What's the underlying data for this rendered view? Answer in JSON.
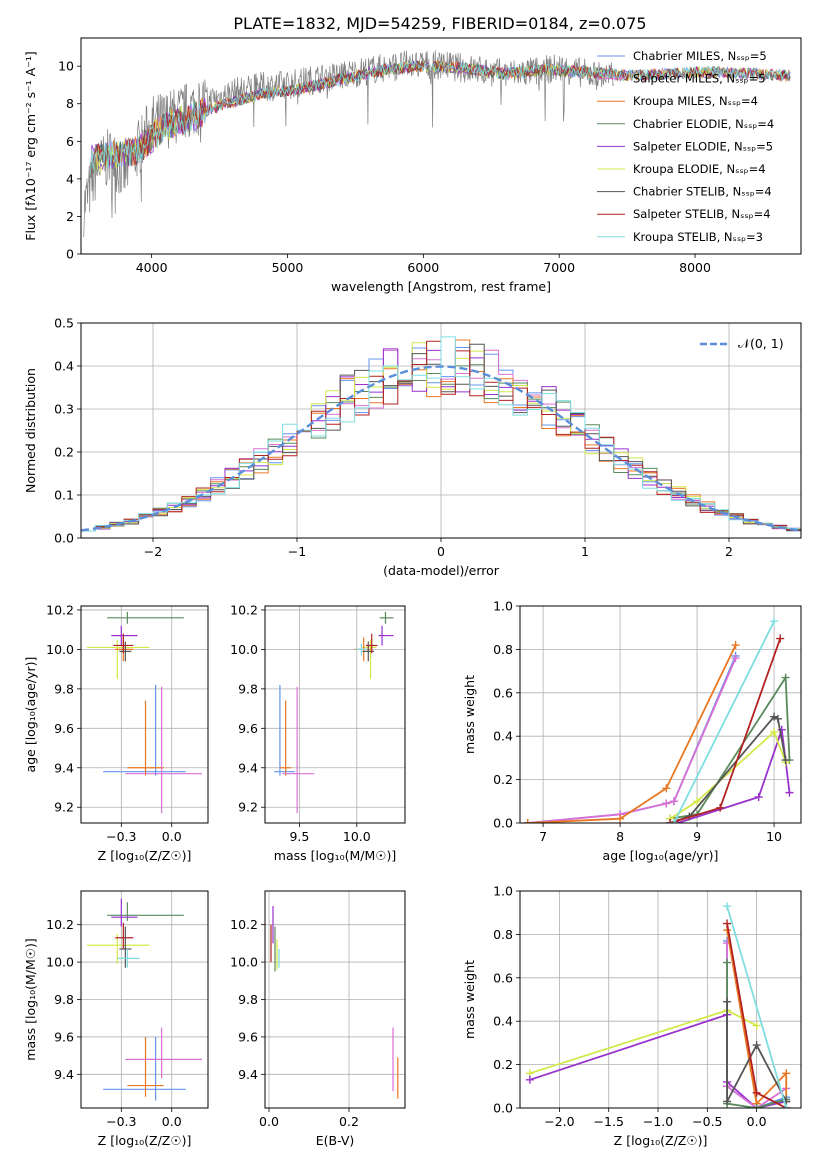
{
  "figure": {
    "title": "PLATE=1832, MJD=54259, FIBERID=0184, z=0.075"
  },
  "chart_data": [
    {
      "id": "spectrum",
      "type": "line",
      "xlabel": "wavelength [Angstrom, rest frame]",
      "ylabel": "Flux [fλ10⁻¹⁷ erg cm⁻² s⁻¹ A⁻¹]",
      "xlim": [
        3480,
        8780
      ],
      "ylim": [
        0,
        11.5
      ],
      "xticks": [
        4000,
        5000,
        6000,
        7000,
        8000
      ],
      "yticks": [
        0,
        2,
        4,
        6,
        8,
        10
      ],
      "grid": false,
      "legend_position": "right",
      "data_series": {
        "name": "",
        "color": "#808080",
        "x": [
          3500,
          3600,
          3700,
          3800,
          3900,
          4000,
          4200,
          4400,
          4600,
          4800,
          5000,
          5200,
          5400,
          5600,
          5800,
          6000,
          6200,
          6400,
          6600,
          6800,
          7000,
          7200,
          7400
        ],
        "y": [
          2.5,
          4.6,
          5.2,
          4.3,
          5.6,
          6.9,
          7.4,
          8.1,
          8.6,
          8.9,
          9.0,
          9.3,
          9.5,
          9.8,
          10.0,
          10.1,
          10.0,
          9.8,
          9.6,
          9.7,
          9.9,
          9.6,
          9.4
        ]
      },
      "model_x": [
        3550,
        3700,
        3900,
        4100,
        4300,
        4500,
        4800,
        5100,
        5400,
        5700,
        6000,
        6300,
        6600,
        6900,
        7200,
        7500,
        7800,
        8100,
        8400,
        8700
      ],
      "model_y": [
        5.0,
        5.3,
        5.5,
        6.8,
        7.3,
        7.9,
        8.5,
        8.8,
        9.3,
        9.8,
        10.0,
        9.9,
        9.6,
        9.8,
        9.7,
        9.5,
        9.6,
        9.7,
        9.6,
        9.5
      ],
      "legend": [
        {
          "name": "Chabrier MILES, N_SSP=5",
          "color": "#6495ed"
        },
        {
          "name": "Salpeter MILES, N_SSP=5",
          "color": "#da70d6"
        },
        {
          "name": "Kroupa MILES, N_SSP=4",
          "color": "#e87722"
        },
        {
          "name": "Chabrier ELODIE, N_SSP=4",
          "color": "#5a8a5a"
        },
        {
          "name": "Salpeter ELODIE, N_SSP=5",
          "color": "#9932cc"
        },
        {
          "name": "Kroupa ELODIE, N_SSP=4",
          "color": "#d4e84a"
        },
        {
          "name": "Chabrier STELIB, N_SSP=4",
          "color": "#555555"
        },
        {
          "name": "Salpeter STELIB, N_SSP=4",
          "color": "#b22222"
        },
        {
          "name": "Kroupa STELIB, N_SSP=3",
          "color": "#7fdde0"
        }
      ]
    },
    {
      "id": "residuals",
      "type": "step",
      "xlabel": "(data-model)/error",
      "ylabel": "Normed distribution",
      "xlim": [
        -2.5,
        2.5
      ],
      "ylim": [
        0,
        0.5
      ],
      "xticks": [
        -2,
        -1,
        0,
        1,
        2
      ],
      "yticks": [
        0.0,
        0.1,
        0.2,
        0.3,
        0.4,
        0.5
      ],
      "grid": true,
      "legend": [
        {
          "name": "𝒩(0, 1)",
          "color": "#5b8fd9"
        }
      ],
      "legend_position": "top-right",
      "bin_width": 0.1
    },
    {
      "id": "age-vs-Z",
      "type": "errorbar",
      "xlabel": "Z [log₁₀(Z/Z☉)]",
      "ylabel": "age  [log₁₀(age/yr)]",
      "xlim": [
        -0.45,
        0.18
      ],
      "ylim": [
        9.12,
        10.22
      ],
      "xticks": [
        -0.25,
        0.0
      ],
      "yticks": [
        9.2,
        9.4,
        9.6,
        9.8,
        10.0,
        10.2
      ],
      "grid": true,
      "points": [
        {
          "x": -0.22,
          "y": 10.16,
          "xerr": [
            0.1,
            0.28
          ],
          "yerr": [
            0.03,
            0.03
          ],
          "color": "#5a8a5a"
        },
        {
          "x": -0.25,
          "y": 10.07,
          "xerr": [
            0.05,
            0.08
          ],
          "yerr": [
            0.05,
            0.05
          ],
          "color": "#9932cc"
        },
        {
          "x": -0.27,
          "y": 10.01,
          "xerr": [
            0.15,
            0.16
          ],
          "yerr": [
            0.16,
            0.04
          ],
          "color": "#d4e84a"
        },
        {
          "x": -0.24,
          "y": 10.0,
          "xerr": [
            0.04,
            0.05
          ],
          "yerr": [
            0.06,
            0.06
          ],
          "color": "#e87722"
        },
        {
          "x": -0.23,
          "y": 9.99,
          "xerr": [
            0.03,
            0.03
          ],
          "yerr": [
            0.05,
            0.05
          ],
          "color": "#555555"
        },
        {
          "x": -0.24,
          "y": 10.02,
          "xerr": [
            0.05,
            0.05
          ],
          "yerr": [
            0.04,
            0.06
          ],
          "color": "#b22222"
        },
        {
          "x": -0.08,
          "y": 9.38,
          "xerr": [
            0.26,
            0.15
          ],
          "yerr": [
            0.02,
            0.44
          ],
          "color": "#6495ed"
        },
        {
          "x": -0.13,
          "y": 9.4,
          "xerr": [
            0.09,
            0.09
          ],
          "yerr": [
            0.04,
            0.34
          ],
          "color": "#e87722"
        },
        {
          "x": -0.05,
          "y": 9.37,
          "xerr": [
            0.18,
            0.2
          ],
          "yerr": [
            0.2,
            0.44
          ],
          "color": "#da70d6"
        }
      ]
    },
    {
      "id": "age-vs-mass",
      "type": "errorbar",
      "xlabel": "mass [log₁₀(M/M☉)]",
      "ylabel": "",
      "xlim": [
        9.2,
        10.42
      ],
      "ylim": [
        9.12,
        10.22
      ],
      "xticks": [
        9.5,
        10.0
      ],
      "yticks": [
        9.2,
        9.4,
        9.6,
        9.8,
        10.0,
        10.2
      ],
      "grid": true,
      "points": [
        {
          "x": 10.22,
          "y": 10.07,
          "xerr": [
            0.03,
            0.1
          ],
          "yerr": [
            0.05,
            0.05
          ],
          "color": "#9932cc"
        },
        {
          "x": 10.25,
          "y": 10.16,
          "xerr": [
            0.05,
            0.07
          ],
          "yerr": [
            0.03,
            0.03
          ],
          "color": "#5a8a5a"
        },
        {
          "x": 10.12,
          "y": 10.01,
          "xerr": [
            0.08,
            0.05
          ],
          "yerr": [
            0.16,
            0.04
          ],
          "color": "#d4e84a"
        },
        {
          "x": 10.06,
          "y": 10.0,
          "xerr": [
            0.08,
            0.06
          ],
          "yerr": [
            0.06,
            0.06
          ],
          "color": "#e87722"
        },
        {
          "x": 10.1,
          "y": 9.99,
          "xerr": [
            0.05,
            0.05
          ],
          "yerr": [
            0.05,
            0.05
          ],
          "color": "#555555"
        },
        {
          "x": 10.13,
          "y": 10.02,
          "xerr": [
            0.05,
            0.05
          ],
          "yerr": [
            0.04,
            0.06
          ],
          "color": "#b22222"
        },
        {
          "x": 10.04,
          "y": 10.0,
          "xerr": [
            0.05,
            0.05
          ],
          "yerr": [
            0.03,
            0.03
          ],
          "color": "#7fdde0"
        },
        {
          "x": 9.33,
          "y": 9.38,
          "xerr": [
            0.05,
            0.13
          ],
          "yerr": [
            0.02,
            0.44
          ],
          "color": "#6495ed"
        },
        {
          "x": 9.38,
          "y": 9.4,
          "xerr": [
            0.05,
            0.05
          ],
          "yerr": [
            0.04,
            0.34
          ],
          "color": "#e87722"
        },
        {
          "x": 9.48,
          "y": 9.37,
          "xerr": [
            0.13,
            0.15
          ],
          "yerr": [
            0.2,
            0.44
          ],
          "color": "#da70d6"
        }
      ]
    },
    {
      "id": "massweight-vs-age",
      "type": "line",
      "xlabel": "age  [log₁₀(age/yr)]",
      "ylabel": "mass weight",
      "xlim": [
        6.7,
        10.35
      ],
      "ylim": [
        0,
        1.0
      ],
      "xticks": [
        7,
        8,
        9,
        10
      ],
      "yticks": [
        0.0,
        0.2,
        0.4,
        0.6,
        0.8,
        1.0
      ],
      "grid": true,
      "series": [
        {
          "color": "#6495ed",
          "x": [
            6.8,
            8.0,
            8.6,
            8.7,
            9.5
          ],
          "y": [
            0.0,
            0.04,
            0.09,
            0.1,
            0.77
          ]
        },
        {
          "color": "#da70d6",
          "x": [
            6.8,
            8.0,
            8.6,
            8.7,
            9.5
          ],
          "y": [
            0.0,
            0.04,
            0.09,
            0.1,
            0.76
          ]
        },
        {
          "color": "#e87722",
          "x": [
            6.8,
            8.0,
            8.6,
            9.5
          ],
          "y": [
            0.0,
            0.02,
            0.16,
            0.82
          ]
        },
        {
          "color": "#5a8a5a",
          "x": [
            8.65,
            9.0,
            10.15,
            10.2
          ],
          "y": [
            0.02,
            0.04,
            0.67,
            0.29
          ]
        },
        {
          "color": "#9932cc",
          "x": [
            8.75,
            9.8,
            10.1,
            10.2
          ],
          "y": [
            0.0,
            0.12,
            0.43,
            0.14
          ]
        },
        {
          "color": "#d4e84a",
          "x": [
            8.65,
            9.0,
            10.0,
            10.15
          ],
          "y": [
            0.02,
            0.1,
            0.42,
            0.28
          ]
        },
        {
          "color": "#555555",
          "x": [
            8.65,
            8.9,
            10.0,
            10.05,
            10.15
          ],
          "y": [
            0.0,
            0.03,
            0.49,
            0.48,
            0.29
          ]
        },
        {
          "color": "#b22222",
          "x": [
            8.65,
            9.3,
            10.08
          ],
          "y": [
            0.0,
            0.07,
            0.85
          ]
        },
        {
          "color": "#7fdde0",
          "x": [
            8.7,
            10.0
          ],
          "y": [
            0.0,
            0.93
          ]
        }
      ]
    },
    {
      "id": "mass-vs-Z",
      "type": "errorbar",
      "xlabel": "Z [log₁₀(Z/Z☉)]",
      "ylabel": "mass [log₁₀(M/M☉)]",
      "xlim": [
        -0.45,
        0.18
      ],
      "ylim": [
        9.22,
        10.38
      ],
      "xticks": [
        -0.25,
        0.0
      ],
      "yticks": [
        9.4,
        9.6,
        9.8,
        10.0,
        10.2
      ],
      "grid": true,
      "points": [
        {
          "x": -0.22,
          "y": 10.25,
          "xerr": [
            0.1,
            0.28
          ],
          "yerr": [
            0.03,
            0.07
          ],
          "color": "#5a8a5a"
        },
        {
          "x": -0.25,
          "y": 10.24,
          "xerr": [
            0.05,
            0.08
          ],
          "yerr": [
            0.05,
            0.1
          ],
          "color": "#9932cc"
        },
        {
          "x": -0.27,
          "y": 10.09,
          "xerr": [
            0.15,
            0.16
          ],
          "yerr": [
            0.1,
            0.06
          ],
          "color": "#d4e84a"
        },
        {
          "x": -0.24,
          "y": 10.13,
          "xerr": [
            0.04,
            0.05
          ],
          "yerr": [
            0.06,
            0.08
          ],
          "color": "#b22222"
        },
        {
          "x": -0.23,
          "y": 10.07,
          "xerr": [
            0.03,
            0.03
          ],
          "yerr": [
            0.1,
            0.12
          ],
          "color": "#555555"
        },
        {
          "x": -0.22,
          "y": 10.02,
          "xerr": [
            0.05,
            0.06
          ],
          "yerr": [
            0.05,
            0.05
          ],
          "color": "#7fdde0"
        },
        {
          "x": -0.08,
          "y": 9.32,
          "xerr": [
            0.26,
            0.15
          ],
          "yerr": [
            0.06,
            0.28
          ],
          "color": "#6495ed"
        },
        {
          "x": -0.13,
          "y": 9.34,
          "xerr": [
            0.09,
            0.09
          ],
          "yerr": [
            0.06,
            0.26
          ],
          "color": "#e87722"
        },
        {
          "x": -0.05,
          "y": 9.48,
          "xerr": [
            0.18,
            0.2
          ],
          "yerr": [
            0.1,
            0.17
          ],
          "color": "#da70d6"
        }
      ]
    },
    {
      "id": "mass-vs-EBV",
      "type": "errorbar",
      "xlabel": "E(B-V)",
      "ylabel": "",
      "xlim": [
        -0.01,
        0.34
      ],
      "ylim": [
        9.22,
        10.38
      ],
      "xticks": [
        0.0,
        0.2
      ],
      "yticks": [
        9.4,
        9.6,
        9.8,
        10.0,
        10.2
      ],
      "grid": true,
      "points": [
        {
          "x": 0.005,
          "y": 10.1,
          "xerr": [
            0.0,
            0.0
          ],
          "yerr": [
            0.1,
            0.1
          ],
          "color": "#b22222"
        },
        {
          "x": 0.01,
          "y": 10.2,
          "xerr": [
            0.0,
            0.0
          ],
          "yerr": [
            0.1,
            0.1
          ],
          "color": "#9932cc"
        },
        {
          "x": 0.015,
          "y": 10.07,
          "xerr": [
            0.0,
            0.0
          ],
          "yerr": [
            0.12,
            0.12
          ],
          "color": "#5a8a5a"
        },
        {
          "x": 0.02,
          "y": 10.04,
          "xerr": [
            0.0,
            0.0
          ],
          "yerr": [
            0.08,
            0.08
          ],
          "color": "#d4e84a"
        },
        {
          "x": 0.025,
          "y": 10.02,
          "xerr": [
            0.0,
            0.0
          ],
          "yerr": [
            0.05,
            0.05
          ],
          "color": "#7fdde0"
        },
        {
          "x": 0.31,
          "y": 9.48,
          "xerr": [
            0.0,
            0.0
          ],
          "yerr": [
            0.17,
            0.17
          ],
          "color": "#da70d6"
        },
        {
          "x": 0.322,
          "y": 9.38,
          "xerr": [
            0.0,
            0.0
          ],
          "yerr": [
            0.11,
            0.11
          ],
          "color": "#e87722"
        }
      ]
    },
    {
      "id": "massweight-vs-Z",
      "type": "line",
      "xlabel": "Z [log₁₀(Z/Z☉)]",
      "ylabel": "mass weight",
      "xlim": [
        -2.4,
        0.45
      ],
      "ylim": [
        0,
        1.0
      ],
      "xticks": [
        -2.0,
        -1.5,
        -1.0,
        -0.5,
        0.0
      ],
      "yticks": [
        0.0,
        0.2,
        0.4,
        0.6,
        0.8,
        1.0
      ],
      "grid": true,
      "series": [
        {
          "color": "#d4e84a",
          "x": [
            -2.3,
            -0.3,
            0.0
          ],
          "y": [
            0.16,
            0.45,
            0.38
          ]
        },
        {
          "color": "#9932cc",
          "x": [
            -2.3,
            -0.3,
            -0.3,
            0.0,
            0.3
          ],
          "y": [
            0.13,
            0.43,
            0.12,
            0.0,
            0.03
          ]
        },
        {
          "color": "#6495ed",
          "x": [
            -0.3,
            -0.3,
            0.0,
            0.3
          ],
          "y": [
            0.77,
            0.1,
            0.0,
            0.05
          ]
        },
        {
          "color": "#da70d6",
          "x": [
            -0.3,
            -0.3,
            0.0,
            0.3
          ],
          "y": [
            0.76,
            0.1,
            0.0,
            0.09
          ]
        },
        {
          "color": "#e87722",
          "x": [
            -0.3,
            0.0,
            0.3,
            0.3
          ],
          "y": [
            0.82,
            0.02,
            0.16,
            0.0
          ]
        },
        {
          "color": "#5a8a5a",
          "x": [
            -0.3,
            -0.3,
            0.0,
            0.3
          ],
          "y": [
            0.67,
            0.02,
            0.0,
            0.04
          ]
        },
        {
          "color": "#555555",
          "x": [
            -0.3,
            -0.3,
            0.0,
            0.3
          ],
          "y": [
            0.49,
            0.03,
            0.29,
            0.03
          ]
        },
        {
          "color": "#b22222",
          "x": [
            -0.3,
            0.0,
            0.3
          ],
          "y": [
            0.85,
            0.07,
            0.0
          ]
        },
        {
          "color": "#7fdde0",
          "x": [
            -0.3,
            0.3
          ],
          "y": [
            0.93,
            0.0
          ]
        }
      ]
    }
  ]
}
